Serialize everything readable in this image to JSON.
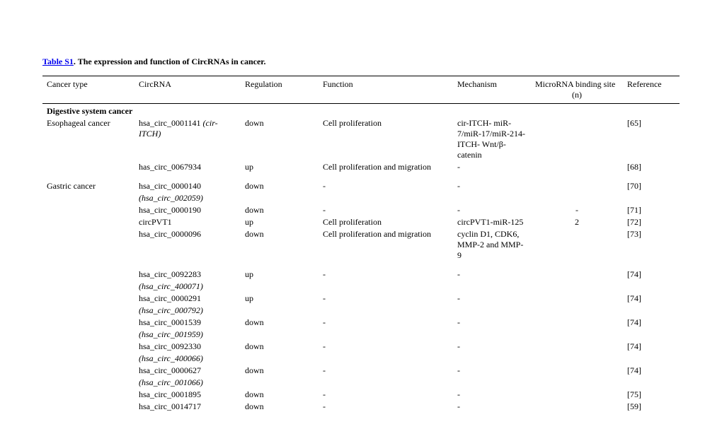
{
  "title": {
    "link_text": "Table S1",
    "rest_text": ". The expression and function of CircRNAs in cancer."
  },
  "columns": [
    "Cancer type",
    "CircRNA",
    "Regulation",
    "Function",
    "Mechanism",
    "MicroRNA binding site",
    "Reference"
  ],
  "binding_sub": "(n)",
  "section_label": "Digestive system cancer",
  "rows": [
    {
      "cancer": "Esophageal cancer",
      "circ_main": "hsa_circ_0001141",
      "circ_alt": "(cir-ITCH)",
      "reg": "down",
      "func": "Cell proliferation",
      "mech": "cir-ITCH- miR-7/miR-17/miR-214- ITCH- Wnt/β-catenin",
      "bind": "",
      "ref": "[65]"
    },
    {
      "cancer": "",
      "circ_main": "has_circ_0067934",
      "circ_alt": "",
      "reg": "up",
      "func": "Cell proliferation and migration",
      "mech": "-",
      "bind": "",
      "ref": "[68]",
      "spacer_after": true
    },
    {
      "cancer": "Gastric cancer",
      "circ_main": "hsa_circ_0000140",
      "circ_alt": "(hsa_circ_002059)",
      "reg": "down",
      "func": "-",
      "mech": "-",
      "bind": "",
      "ref": "[70]",
      "alt_below": true
    },
    {
      "cancer": "",
      "circ_main": "hsa_circ_0000190",
      "circ_alt": "",
      "reg": "down",
      "func": "-",
      "mech": "-",
      "bind": "-",
      "ref": "[71]"
    },
    {
      "cancer": "",
      "circ_main": "circPVT1",
      "circ_alt": "",
      "reg": "up",
      "func": "Cell proliferation",
      "mech": "circPVT1-miR-125",
      "bind": "2",
      "ref": "[72]"
    },
    {
      "cancer": "",
      "circ_main": "hsa_circ_0000096",
      "circ_alt": "",
      "reg": "down",
      "func": "Cell proliferation and migration",
      "mech": "cyclin D1, CDK6, MMP-2 and MMP-9",
      "bind": "",
      "ref": "[73]",
      "spacer_after": true
    },
    {
      "cancer": "",
      "circ_main": "hsa_circ_0092283",
      "circ_alt": "(hsa_circ_400071)",
      "reg": "up",
      "func": "-",
      "mech": "-",
      "bind": "",
      "ref": "[74]",
      "alt_below": true
    },
    {
      "cancer": "",
      "circ_main": "hsa_circ_0000291",
      "circ_alt": "(hsa_circ_000792)",
      "reg": "up",
      "func": "-",
      "mech": "-",
      "bind": "",
      "ref": "[74]",
      "alt_below": true
    },
    {
      "cancer": "",
      "circ_main": "hsa_circ_0001539",
      "circ_alt": "(hsa_circ_001959)",
      "reg": "down",
      "func": "-",
      "mech": "-",
      "bind": "",
      "ref": "[74]",
      "alt_below": true
    },
    {
      "cancer": "",
      "circ_main": "hsa_circ_0092330",
      "circ_alt": "(hsa_circ_400066)",
      "reg": "down",
      "func": "-",
      "mech": "-",
      "bind": "",
      "ref": "[74]",
      "alt_below": true
    },
    {
      "cancer": "",
      "circ_main": "hsa_circ_0000627",
      "circ_alt": "(hsa_circ_001066)",
      "reg": "down",
      "func": "-",
      "mech": "-",
      "bind": "",
      "ref": "[74]",
      "alt_below": true
    },
    {
      "cancer": "",
      "circ_main": "hsa_circ_0001895",
      "circ_alt": "",
      "reg": "down",
      "func": "-",
      "mech": "-",
      "bind": "",
      "ref": "[75]"
    },
    {
      "cancer": "",
      "circ_main": "hsa_circ_0014717",
      "circ_alt": "",
      "reg": "down",
      "func": "-",
      "mech": "-",
      "bind": "",
      "ref": "[59]"
    }
  ]
}
